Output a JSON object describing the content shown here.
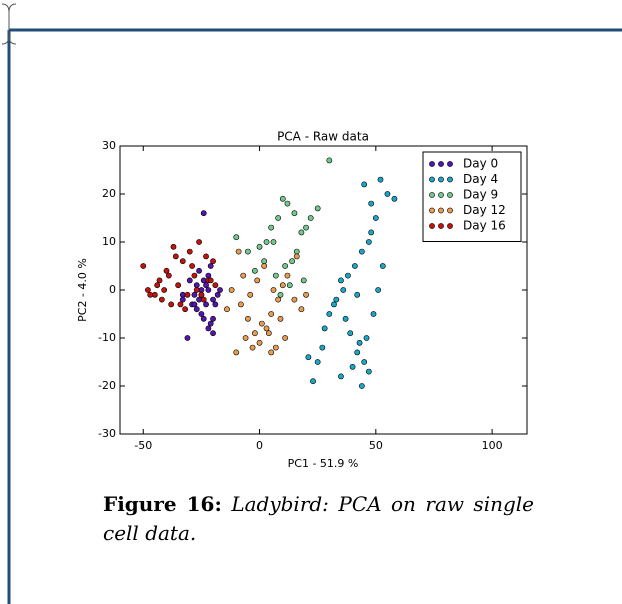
{
  "chart_data": {
    "type": "scatter",
    "title": "PCA - Raw data",
    "x_label": "PC1 - 51.9 %",
    "y_label": "PC2 - 4.0 %",
    "xlim": [
      -60,
      115
    ],
    "ylim": [
      -30,
      30
    ],
    "xticks": [
      -50,
      0,
      50,
      100
    ],
    "yticks": [
      -30,
      -20,
      -10,
      0,
      10,
      20,
      30
    ],
    "legend": "upper right",
    "series": [
      {
        "name": "Day 0",
        "color": "#5314b0",
        "x": [
          -30,
          -28,
          -25,
          -22,
          -20,
          -27,
          -24,
          -21,
          -19,
          -33,
          -26,
          -23,
          -18,
          -29,
          -25,
          -22,
          -20,
          -24,
          -27,
          -31,
          -17,
          -23,
          -26,
          -21,
          -24,
          -28,
          -20,
          -22,
          -25,
          -33
        ],
        "values": [
          2,
          -1,
          0,
          3,
          -2,
          -4,
          -6,
          -7,
          -3,
          -1,
          4,
          1,
          -1,
          -3,
          -5,
          -8,
          -6,
          2,
          1,
          -10,
          0,
          -3,
          -2,
          5,
          16,
          -3,
          -9,
          0,
          -1,
          -2
        ]
      },
      {
        "name": "Day 4",
        "color": "#1aa6c8",
        "x": [
          45,
          52,
          55,
          48,
          50,
          58,
          47,
          44,
          41,
          38,
          35,
          33,
          30,
          28,
          27,
          25,
          23,
          21,
          35,
          40,
          42,
          46,
          49,
          51,
          53,
          37,
          39,
          43,
          45,
          32,
          36,
          48,
          47,
          44,
          42
        ],
        "values": [
          22,
          23,
          20,
          18,
          15,
          19,
          10,
          8,
          5,
          3,
          2,
          -2,
          -5,
          -8,
          -12,
          -15,
          -19,
          -14,
          -18,
          -16,
          -13,
          -10,
          -5,
          0,
          5,
          -6,
          -9,
          -11,
          -15,
          -3,
          0,
          12,
          -17,
          -20,
          -1
        ]
      },
      {
        "name": "Day 9",
        "color": "#72c98d",
        "x": [
          30,
          10,
          12,
          8,
          15,
          20,
          18,
          5,
          3,
          0,
          -5,
          -10,
          14,
          22,
          25,
          11,
          7,
          2,
          16,
          19,
          13,
          6,
          9,
          -2
        ],
        "values": [
          27,
          19,
          18,
          15,
          16,
          13,
          12,
          13,
          10,
          9,
          8,
          11,
          6,
          15,
          17,
          5,
          3,
          6,
          8,
          2,
          1,
          10,
          -1,
          4
        ]
      },
      {
        "name": "Day 12",
        "color": "#e89c50",
        "x": [
          -12,
          -8,
          -5,
          -2,
          0,
          3,
          5,
          8,
          10,
          12,
          15,
          18,
          -10,
          -6,
          -3,
          1,
          4,
          7,
          -14,
          -1,
          2,
          6,
          9,
          -4,
          -7,
          5,
          11,
          20,
          16,
          -9
        ],
        "values": [
          0,
          -3,
          -6,
          -9,
          -11,
          -8,
          -5,
          -2,
          1,
          3,
          -2,
          -4,
          -13,
          -10,
          -12,
          -7,
          -9,
          -12,
          -4,
          2,
          5,
          0,
          -6,
          -1,
          3,
          -13,
          -10,
          -1,
          7,
          8
        ]
      },
      {
        "name": "Day 16",
        "color": "#c3130f",
        "x": [
          -50,
          -48,
          -45,
          -43,
          -40,
          -38,
          -35,
          -33,
          -30,
          -28,
          -25,
          -23,
          -20,
          -42,
          -37,
          -32,
          -27,
          -22,
          -47,
          -44,
          -39,
          -34,
          -29,
          -24,
          -19,
          -36,
          -31,
          -26,
          -21,
          -41
        ],
        "values": [
          5,
          0,
          -1,
          2,
          4,
          -3,
          1,
          6,
          8,
          3,
          -1,
          7,
          6,
          -2,
          9,
          -4,
          0,
          2,
          -1,
          1,
          3,
          -3,
          5,
          -2,
          1,
          7,
          -1,
          10,
          2,
          0
        ]
      }
    ]
  },
  "caption": {
    "label": "Figure 16:",
    "text": "Ladybird: PCA on raw single cell data."
  }
}
